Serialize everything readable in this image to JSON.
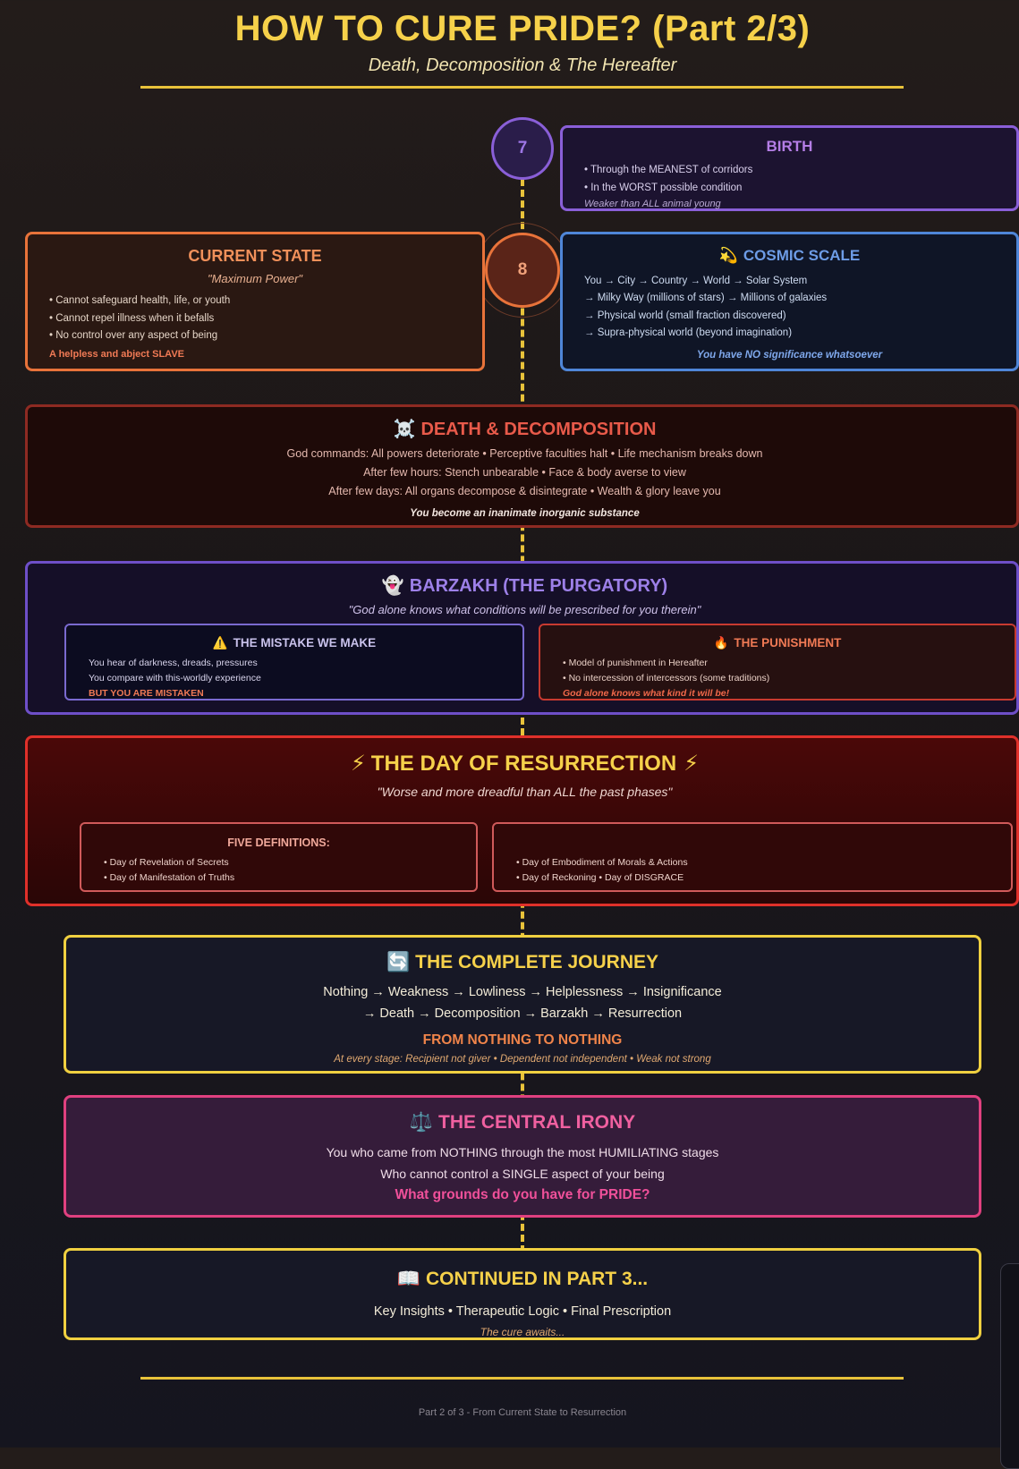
{
  "header": {
    "title": "HOW TO CURE PRIDE? (Part 2/3)",
    "subtitle": "Death, Decomposition & The Hereafter"
  },
  "birth": {
    "step": "7",
    "title": "BIRTH",
    "items": [
      "• Through the MEANEST of corridors",
      "• In the WORST possible condition"
    ],
    "note": "Weaker than ALL animal young"
  },
  "current_state": {
    "step": "8",
    "title": "CURRENT STATE",
    "subtitle": "\"Maximum Power\"",
    "items": [
      "• Cannot safeguard health, life, or youth",
      "• Cannot repel illness when it befalls",
      "• No control over any aspect of being"
    ],
    "note": "A helpless and abject SLAVE"
  },
  "cosmic": {
    "icon": "💫",
    "title": "COSMIC SCALE",
    "items": [
      "You → City → Country → World → Solar System",
      "→ Milky Way (millions of stars) → Millions of galaxies",
      "→ Physical world (small fraction discovered)",
      "→ Supra-physical world (beyond imagination)"
    ],
    "note": "You have NO significance whatsoever"
  },
  "death": {
    "icon": "☠️",
    "title": "DEATH & DECOMPOSITION",
    "lines": [
      "God commands: All powers deteriorate • Perceptive faculties halt • Life mechanism breaks down",
      "After few hours: Stench unbearable • Face & body averse to view",
      "After few days: All organs decompose & disintegrate • Wealth & glory leave you"
    ],
    "note": "You become an inanimate inorganic substance"
  },
  "barzakh": {
    "icon": "👻",
    "title": "BARZAKH (THE PURGATORY)",
    "quote": "\"God alone knows what conditions will be prescribed for you therein\"",
    "mistake": {
      "icon": "⚠️",
      "title": "THE MISTAKE WE MAKE",
      "items": [
        "You hear of darkness, dreads, pressures",
        "You compare with this-worldly experience"
      ],
      "note": "BUT YOU ARE MISTAKEN"
    },
    "punishment": {
      "icon": "🔥",
      "title": "THE PUNISHMENT",
      "items": [
        "• Model of punishment in Hereafter",
        "• No intercession of intercessors (some traditions)"
      ],
      "note": "God alone knows what kind it will be!"
    }
  },
  "resurrection": {
    "icon": "⚡",
    "title": "THE DAY OF RESURRECTION",
    "quote": "\"Worse and more dreadful than ALL the past phases\"",
    "definitions_title": "FIVE DEFINITIONS:",
    "left_items": [
      "• Day of Revelation of Secrets",
      "• Day of Manifestation of Truths"
    ],
    "right_items": [
      "• Day of Embodiment of Morals & Actions",
      "• Day of Reckoning • Day of DISGRACE"
    ]
  },
  "journey": {
    "icon": "🔄",
    "title": "THE COMPLETE JOURNEY",
    "line1": "Nothing → Weakness → Lowliness → Helplessness → Insignificance",
    "line2": "→ Death → Decomposition → Barzakh → Resurrection",
    "highlight": "FROM NOTHING TO NOTHING",
    "note": "At every stage: Recipient not giver • Dependent not independent • Weak not strong"
  },
  "irony": {
    "icon": "⚖️",
    "title": "THE CENTRAL IRONY",
    "line1": "You who came from NOTHING through the most HUMILIATING stages",
    "line2": "Who cannot control a SINGLE aspect of your being",
    "question": "What grounds do you have for PRIDE?"
  },
  "continued": {
    "icon": "📖",
    "title": "CONTINUED IN PART 3...",
    "line": "Key Insights • Therapeutic Logic • Final Prescription",
    "note": "The cure awaits..."
  },
  "footer": {
    "text": "Part 2 of 3 - From Current State to Resurrection"
  },
  "colors": {
    "gold": "#f6d14a",
    "purple": "#8a5fd8",
    "orange": "#e8733a",
    "blue": "#4f86d8",
    "red": "#d32a2a",
    "pink": "#e0407f"
  }
}
